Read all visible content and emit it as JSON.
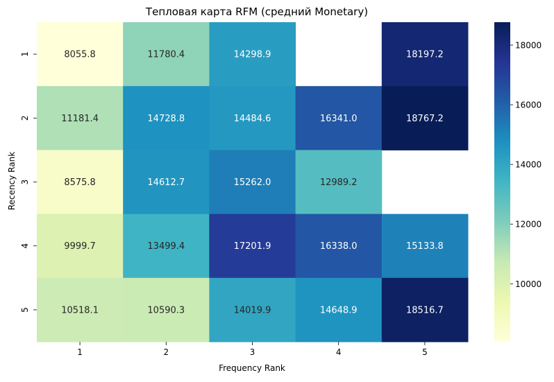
{
  "chart_data": {
    "type": "heatmap",
    "title": "Тепловая карта RFM (средний Monetary)",
    "xlabel": "Frequency Rank",
    "ylabel": "Recency Rank",
    "x_categories": [
      "1",
      "2",
      "3",
      "4",
      "5"
    ],
    "y_categories": [
      "1",
      "2",
      "3",
      "4",
      "5"
    ],
    "values": [
      [
        8055.8,
        11780.4,
        14298.9,
        null,
        18197.2
      ],
      [
        11181.4,
        14728.8,
        14484.6,
        16341.0,
        18767.2
      ],
      [
        8575.8,
        14612.7,
        15262.0,
        12989.2,
        null
      ],
      [
        9999.7,
        13499.4,
        17201.9,
        16338.0,
        15133.8
      ],
      [
        10518.1,
        10590.3,
        14019.9,
        14648.9,
        18516.7
      ]
    ],
    "value_format": "0.1f",
    "colormap": "YlGnBu",
    "colorbar": {
      "range": [
        8055.8,
        18767.2
      ],
      "ticks": [
        10000,
        12000,
        14000,
        16000,
        18000
      ],
      "tick_labels": [
        "10000",
        "12000",
        "14000",
        "16000",
        "18000"
      ]
    },
    "grid": false,
    "missing_cells": "blank"
  }
}
